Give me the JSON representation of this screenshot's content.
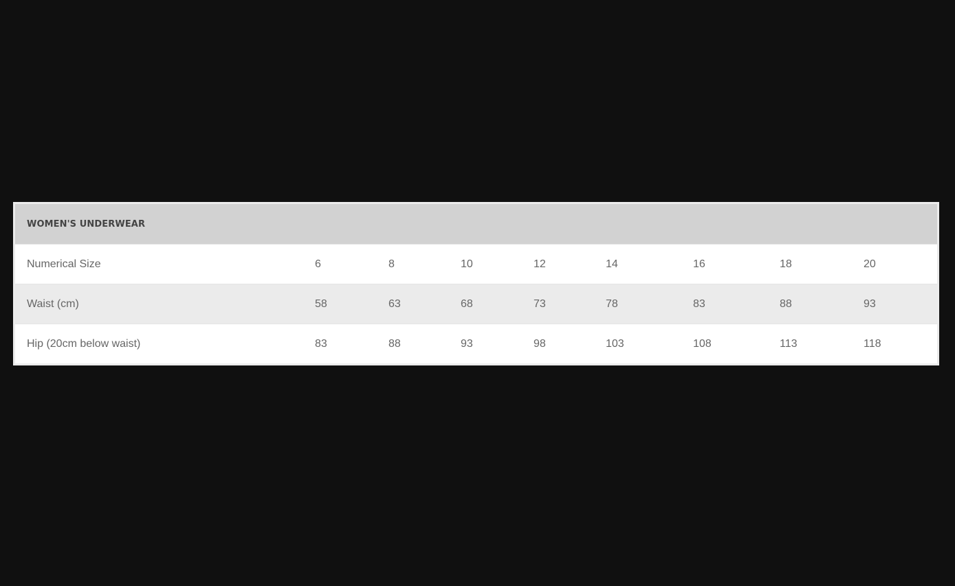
{
  "table": {
    "title": "WOMEN'S UNDERWEAR",
    "rows": [
      {
        "label": "Numerical Size",
        "values": [
          "6",
          "8",
          "10",
          "12",
          "14",
          "16",
          "18",
          "20"
        ]
      },
      {
        "label": "Waist (cm)",
        "values": [
          "58",
          "63",
          "68",
          "73",
          "78",
          "83",
          "88",
          "93"
        ]
      },
      {
        "label": "Hip (20cm below waist)",
        "values": [
          "83",
          "88",
          "93",
          "98",
          "103",
          "108",
          "113",
          "118"
        ]
      }
    ]
  }
}
